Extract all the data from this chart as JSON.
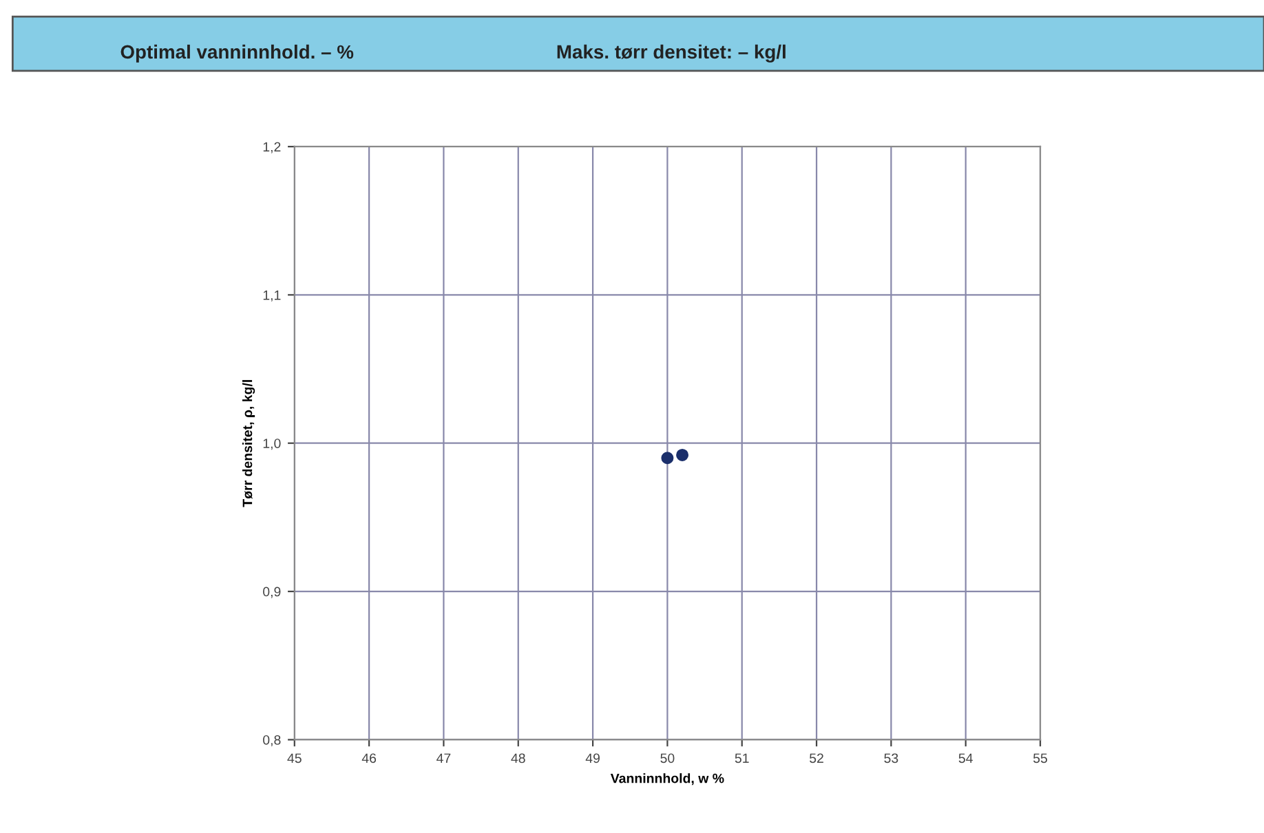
{
  "chart_data": {
    "type": "scatter",
    "annotations": [
      "Optimal vanninnhold. – %",
      "Maks. tørr densitet: – kg/l"
    ],
    "xlabel": "Vanninnhold, w %",
    "ylabel": "Tørr densitet, ρ, kg/l",
    "x": [
      50.0,
      50.2
    ],
    "series": [
      {
        "color": "#1b2f6b",
        "values": [
          0.99,
          0.992
        ]
      }
    ],
    "marker": "circle",
    "xlim": [
      45,
      55
    ],
    "xticks": [
      45,
      46,
      47,
      48,
      49,
      50,
      51,
      52,
      53,
      54,
      55
    ],
    "ylim": [
      0.8,
      1.2
    ],
    "yticks": [
      {
        "value": 0.8,
        "label": "0,8"
      },
      {
        "value": 0.9,
        "label": "0,9"
      },
      {
        "value": 1.0,
        "label": "1,0"
      },
      {
        "value": 1.1,
        "label": "1,1"
      },
      {
        "value": 1.2,
        "label": "1,2"
      }
    ],
    "grid": true
  }
}
